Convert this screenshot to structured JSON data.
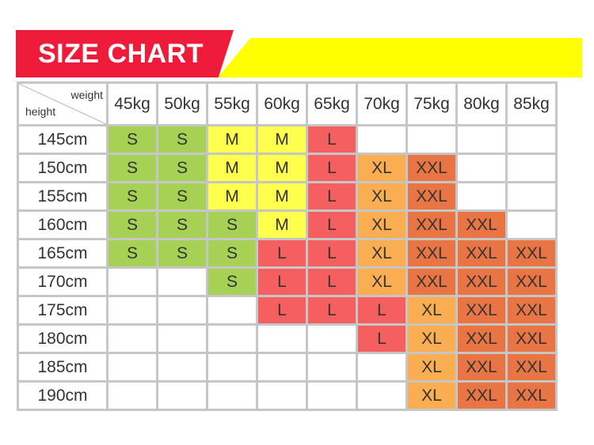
{
  "header": {
    "title": "SIZE CHART",
    "accent_red": "#ee1c3a",
    "accent_yellow": "#ffff00"
  },
  "table": {
    "corner_top": "weight",
    "corner_bottom": "height",
    "weights": [
      "45kg",
      "50kg",
      "55kg",
      "60kg",
      "65kg",
      "70kg",
      "75kg",
      "80kg",
      "85kg"
    ],
    "rows": [
      {
        "height": "145cm",
        "sizes": [
          "S",
          "S",
          "M",
          "M",
          "L",
          "",
          "",
          "",
          ""
        ]
      },
      {
        "height": "150cm",
        "sizes": [
          "S",
          "S",
          "M",
          "M",
          "L",
          "XL",
          "XXL",
          "",
          ""
        ]
      },
      {
        "height": "155cm",
        "sizes": [
          "S",
          "S",
          "M",
          "M",
          "L",
          "XL",
          "XXL",
          "",
          ""
        ]
      },
      {
        "height": "160cm",
        "sizes": [
          "S",
          "S",
          "S",
          "M",
          "L",
          "XL",
          "XXL",
          "XXL",
          ""
        ]
      },
      {
        "height": "165cm",
        "sizes": [
          "S",
          "S",
          "S",
          "L",
          "L",
          "XL",
          "XXL",
          "XXL",
          "XXL"
        ]
      },
      {
        "height": "170cm",
        "sizes": [
          "",
          "",
          "S",
          "L",
          "L",
          "XL",
          "XXL",
          "XXL",
          "XXL"
        ]
      },
      {
        "height": "175cm",
        "sizes": [
          "",
          "",
          "",
          "L",
          "L",
          "L",
          "XL",
          "XXL",
          "XXL"
        ]
      },
      {
        "height": "180cm",
        "sizes": [
          "",
          "",
          "",
          "",
          "",
          "L",
          "XL",
          "XXL",
          "XXL"
        ]
      },
      {
        "height": "185cm",
        "sizes": [
          "",
          "",
          "",
          "",
          "",
          "",
          "XL",
          "XXL",
          "XXL"
        ]
      },
      {
        "height": "190cm",
        "sizes": [
          "",
          "",
          "",
          "",
          "",
          "",
          "XL",
          "XXL",
          "XXL"
        ]
      }
    ],
    "size_colors": {
      "S": "#a6d154",
      "M": "#ffff4d",
      "L": "#f55f5f",
      "XL": "#fbad52",
      "XXL": "#ea7544"
    }
  }
}
